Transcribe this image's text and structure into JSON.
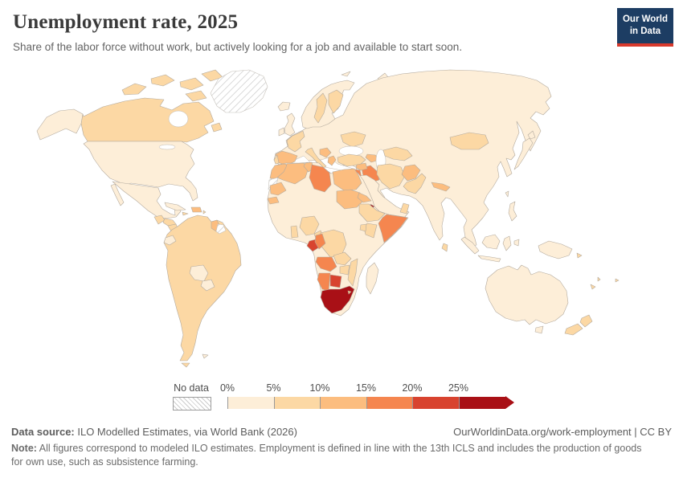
{
  "header": {
    "title": "Unemployment rate, 2025",
    "subtitle": "Share of the labor force without work, but actively looking for a job and available to start soon.",
    "logo_line1": "Our World",
    "logo_line2": "in Data",
    "logo_bg": "#1d3d63",
    "logo_accent": "#d8392c"
  },
  "legend": {
    "no_data_label": "No data",
    "tick_labels": [
      "0%",
      "5%",
      "10%",
      "15%",
      "20%",
      "25%"
    ],
    "palette": [
      "#fdeed8",
      "#fcd8a4",
      "#fcbd7f",
      "#f5864f",
      "#d8432f",
      "#a91016"
    ],
    "hatch_color": "#cccccc"
  },
  "footer": {
    "source_label": "Data source:",
    "source_text": " ILO Modelled Estimates, via World Bank (2026)",
    "link_text": "OurWorldinData.org/work-employment | CC BY",
    "note_label": "Note:",
    "note_text": " All figures correspond to modeled ILO estimates. Employment is defined in line with the 13th ICLS and includes the production of goods for own use, such as subsistence farming."
  },
  "chart_data": {
    "type": "choropleth_map",
    "title": "Unemployment rate, 2025",
    "unit": "% of labor force",
    "year": "2025",
    "bin_ranges": [
      "0-5%",
      "5-10%",
      "10-15%",
      "15-20%",
      "20-25%",
      "25%+"
    ],
    "legend_position": "bottom",
    "no_data_style": "diagonal-hatch",
    "regions": {
      "usa": 0,
      "canada": 1,
      "mexico": 0,
      "greenland": "nodata",
      "guatemala": 1,
      "honduras": 1,
      "nicaragua": 1,
      "costa-rica": 1,
      "panama": 2,
      "cuba": 0,
      "hispaniola": 2,
      "jamaica": 1,
      "lesser-antilles": 1,
      "south-america": 1,
      "ecuador": 0,
      "bolivia": 0,
      "paraguay": 0,
      "guyana": 2,
      "suriname": "nodata",
      "falkland-islands": 0,
      "iceland": 0,
      "uk": 0,
      "ireland": 0,
      "eurasia": 0,
      "scandinavia": 0,
      "sweden": 1,
      "finland": 1,
      "france": 1,
      "spain": 2,
      "portugal": 1,
      "italy": 1,
      "balkans": 2,
      "greece": 2,
      "ukraine": 1,
      "turkey": 1,
      "caucasus": 2,
      "iraq": 3,
      "syria": 2,
      "jordan-israel": 3,
      "iran": 1,
      "afghanistan": 2,
      "pakistan": 1,
      "central-asia": 1,
      "mongolia": 1,
      "nepal": 2,
      "sri-lanka": 1,
      "arabia": 0,
      "yemen": 3,
      "oman": 1,
      "africa": 0,
      "morocco": 2,
      "western-sahara": "nodata",
      "algeria": 2,
      "tunisia": 2,
      "libya": 3,
      "egypt": 2,
      "mauritania": 2,
      "senegal": 2,
      "ghana": 1,
      "nigeria": 1,
      "cameroon": 1,
      "sudan": 2,
      "eritrea": 2,
      "djibouti": 5,
      "ethiopia": 1,
      "somalia": 3,
      "kenya": 1,
      "uganda": 1,
      "drc": 1,
      "gabon": 4,
      "congo": 3,
      "angola": 3,
      "zambia": 1,
      "zimbabwe": 1,
      "mozambique": 1,
      "namibia": 3,
      "botswana": 4,
      "south-africa": 5,
      "eswatini": 2,
      "madagascar": 0,
      "japan": 0,
      "taiwan": 0,
      "philippines": 0,
      "indonesia": 0,
      "new-guinea": 0,
      "australia": 0,
      "new-zealand": 1,
      "pacific-islands": 1,
      "arctic-islands": 0
    }
  }
}
